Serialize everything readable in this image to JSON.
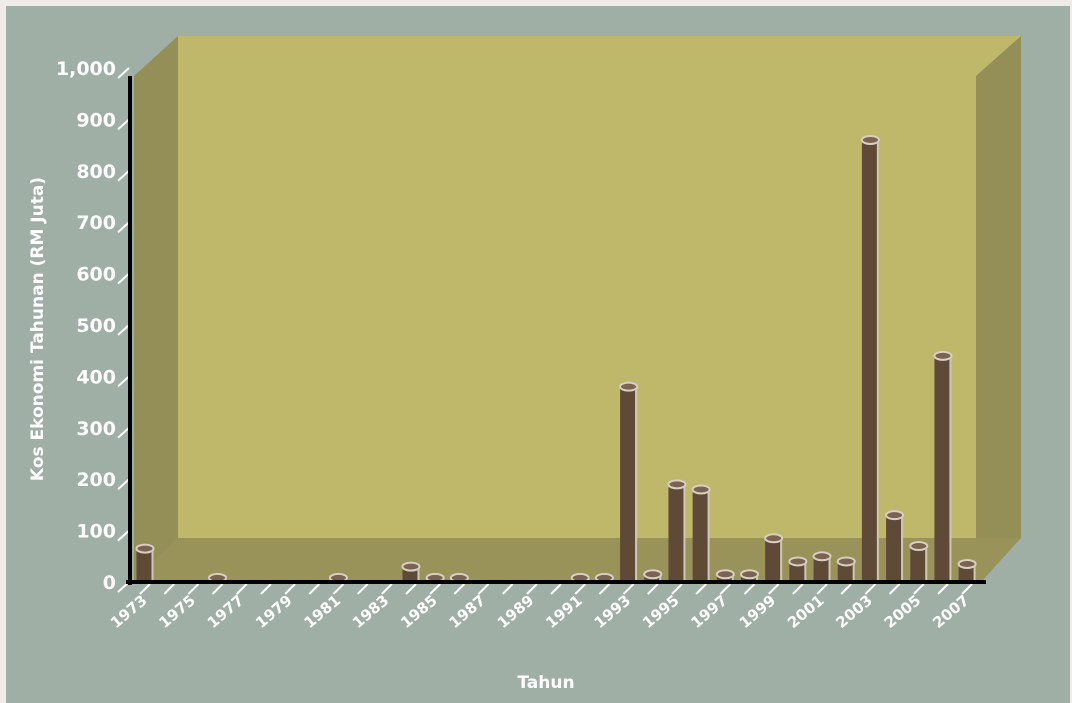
{
  "chart_data": {
    "type": "bar",
    "xlabel": "Tahun",
    "ylabel": "Kos Ekonomi Tahunan (RM Juta)",
    "ylim": [
      0,
      1000
    ],
    "yticks": [
      "0",
      "100",
      "200",
      "300",
      "400",
      "500",
      "600",
      "700",
      "800",
      "900",
      "1,000"
    ],
    "x_tick_labels": [
      "1973",
      "1975",
      "1977",
      "1979",
      "1981",
      "1983",
      "1985",
      "1987",
      "1989",
      "1991",
      "1993",
      "1995",
      "1997",
      "1999",
      "2001",
      "2003",
      "2005",
      "2007"
    ],
    "categories": [
      "1973",
      "1974",
      "1975",
      "1976",
      "1977",
      "1978",
      "1979",
      "1980",
      "1981",
      "1982",
      "1983",
      "1984",
      "1985",
      "1986",
      "1987",
      "1988",
      "1989",
      "1990",
      "1991",
      "1992",
      "1993",
      "1994",
      "1995",
      "1996",
      "1997",
      "1998",
      "1999",
      "2000",
      "2001",
      "2002",
      "2003",
      "2004",
      "2005",
      "2006",
      "2007"
    ],
    "values": [
      65,
      0,
      0,
      8,
      0,
      0,
      0,
      0,
      8,
      0,
      0,
      30,
      8,
      8,
      0,
      0,
      0,
      0,
      8,
      8,
      380,
      15,
      190,
      180,
      15,
      15,
      85,
      40,
      50,
      40,
      860,
      130,
      70,
      440,
      35
    ],
    "colors": {
      "background": "#9fafa6",
      "back_wall": "#bfb86a",
      "side_wall": "#938f57",
      "floor": "#99935a",
      "bar": "#5e4a37",
      "axis": "#000000",
      "text": "#ffffff"
    },
    "grid": false,
    "legend": "none"
  }
}
